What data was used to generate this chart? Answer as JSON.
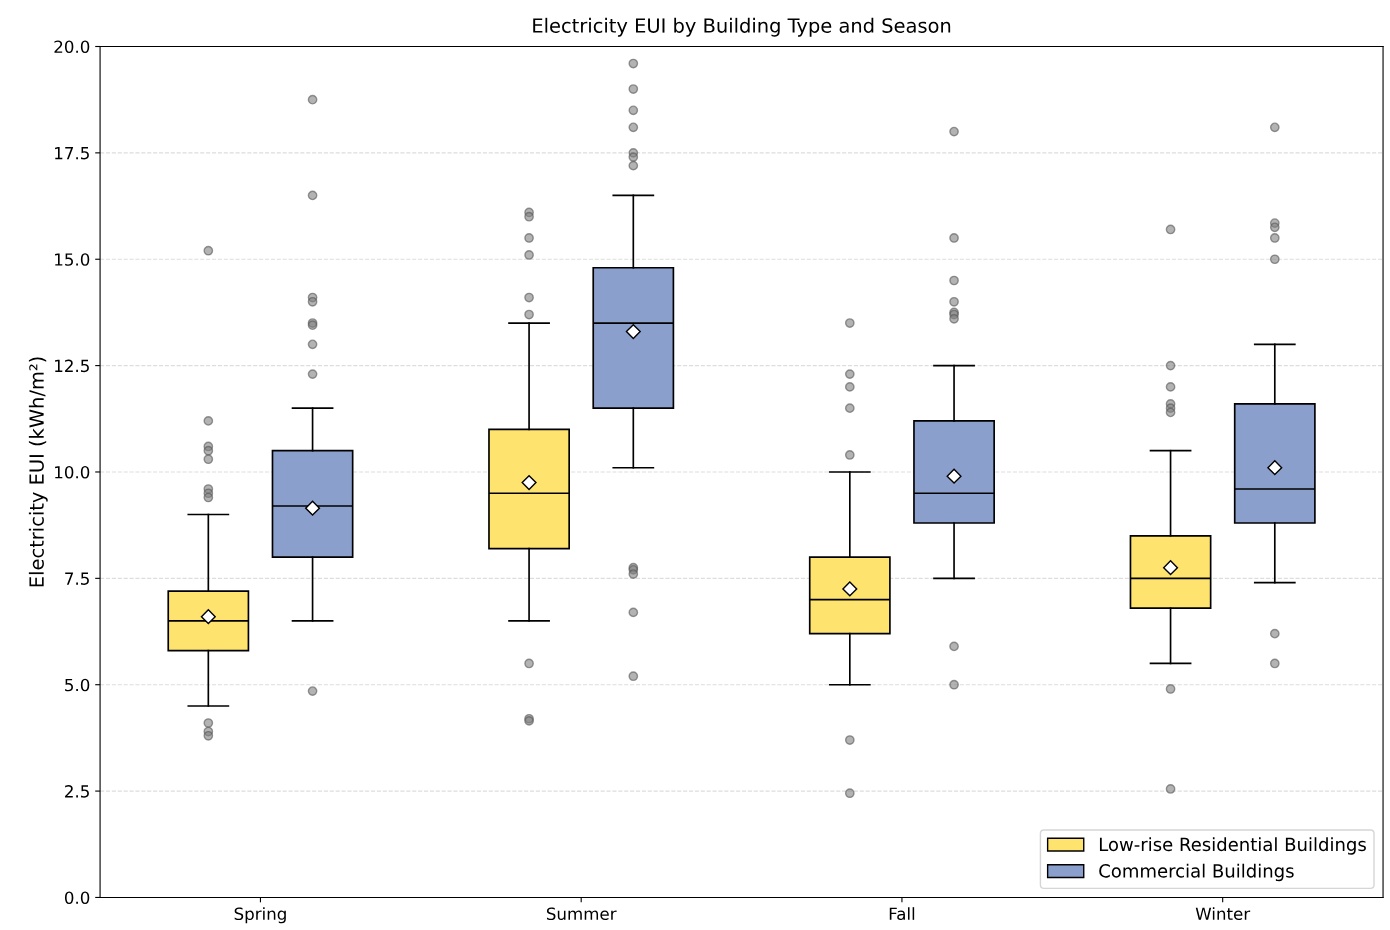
{
  "chart_data": {
    "type": "box",
    "title": "Electricity EUI by Building Type and Season",
    "ylabel": "Electricity EUI (kWh/m²)",
    "categories": [
      "Spring",
      "Summer",
      "Fall",
      "Winter"
    ],
    "ylim": [
      0,
      20
    ],
    "yticks": [
      {
        "value": 0,
        "label": "0.0"
      },
      {
        "value": 2.5,
        "label": "2.5"
      },
      {
        "value": 5,
        "label": "5.0"
      },
      {
        "value": 7.5,
        "label": "7.5"
      },
      {
        "value": 10,
        "label": "10.0"
      },
      {
        "value": 12.5,
        "label": "12.5"
      },
      {
        "value": 15,
        "label": "15.0"
      },
      {
        "value": 17.5,
        "label": "17.5"
      },
      {
        "value": 20,
        "label": "20.0"
      }
    ],
    "grid": "y",
    "legend": "bottom right",
    "series": [
      {
        "name": "Low-rise Residential Buildings",
        "color": "#fee36e",
        "boxes": [
          {
            "low": 4.5,
            "q1": 5.8,
            "median": 6.5,
            "q3": 7.2,
            "high": 9.0,
            "mean": 6.6,
            "outliers": [
              15.2,
              11.2,
              10.6,
              10.5,
              10.3,
              9.6,
              9.5,
              9.4,
              4.1,
              3.9,
              3.8
            ]
          },
          {
            "low": 6.5,
            "q1": 8.2,
            "median": 9.5,
            "q3": 11.0,
            "high": 13.5,
            "mean": 9.75,
            "outliers": [
              16.1,
              16.0,
              15.5,
              15.1,
              14.1,
              13.7,
              5.5,
              4.2,
              4.15
            ]
          },
          {
            "low": 5.0,
            "q1": 6.2,
            "median": 7.0,
            "q3": 8.0,
            "high": 10.0,
            "mean": 7.25,
            "outliers": [
              13.5,
              12.3,
              12.0,
              11.5,
              10.4,
              3.7,
              2.45
            ]
          },
          {
            "low": 5.5,
            "q1": 6.8,
            "median": 7.5,
            "q3": 8.5,
            "high": 10.5,
            "mean": 7.75,
            "outliers": [
              15.7,
              12.5,
              12.0,
              11.6,
              11.5,
              11.4,
              4.9,
              2.55
            ]
          }
        ]
      },
      {
        "name": "Commercial Buildings",
        "color": "#8a9fcc",
        "boxes": [
          {
            "low": 6.5,
            "q1": 8.0,
            "median": 9.2,
            "q3": 10.5,
            "high": 11.5,
            "mean": 9.15,
            "outliers": [
              18.75,
              16.5,
              14.1,
              14.0,
              13.5,
              13.45,
              13.0,
              12.3,
              4.85
            ]
          },
          {
            "low": 10.1,
            "q1": 11.5,
            "median": 13.5,
            "q3": 14.8,
            "high": 16.5,
            "mean": 13.3,
            "outliers": [
              19.6,
              19.0,
              18.5,
              18.1,
              17.5,
              17.4,
              17.2,
              7.75,
              7.7,
              7.6,
              6.7,
              5.2
            ]
          },
          {
            "low": 7.5,
            "q1": 8.8,
            "median": 9.5,
            "q3": 11.2,
            "high": 12.5,
            "mean": 9.9,
            "outliers": [
              18.0,
              15.5,
              14.5,
              14.0,
              13.75,
              13.7,
              13.6,
              5.9,
              5.0
            ]
          },
          {
            "low": 7.4,
            "q1": 8.8,
            "median": 9.6,
            "q3": 11.6,
            "high": 13.0,
            "mean": 10.1,
            "outliers": [
              18.1,
              15.85,
              15.75,
              15.5,
              15.0,
              6.2,
              5.5
            ]
          }
        ]
      }
    ]
  }
}
